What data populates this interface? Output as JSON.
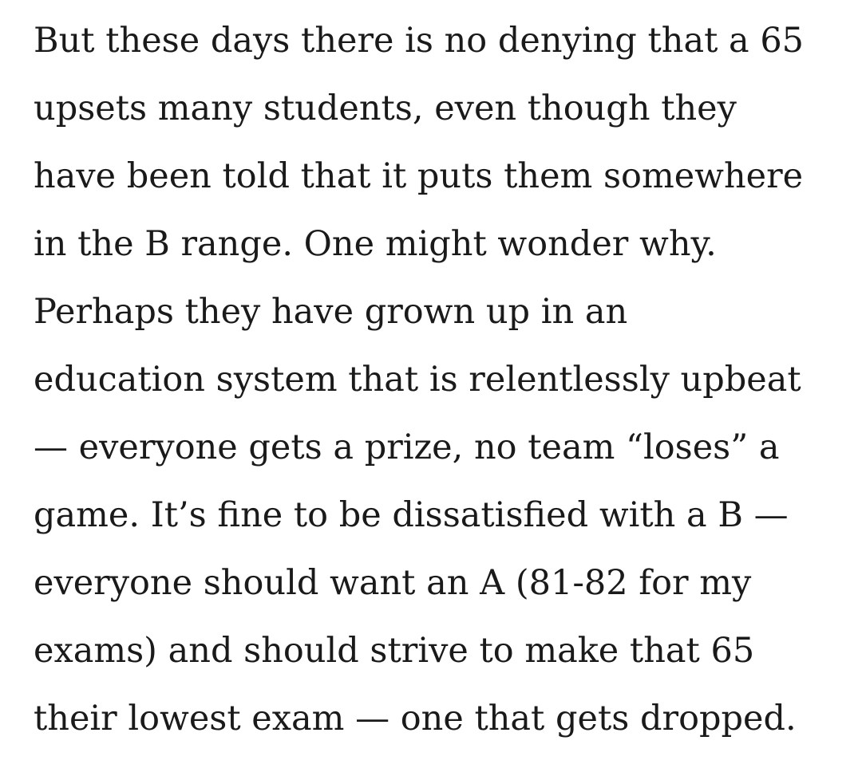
{
  "article": {
    "paragraph_lines": [
      "But these days there is no denying that a 65",
      "upsets many students, even though they",
      "have been told that it puts them somewhere",
      "in the B range. One might wonder why.",
      "Perhaps they have grown up in an",
      "education system that is relentlessly upbeat",
      "— everyone gets a prize, no team “loses” a",
      "game. It’s fine to be dissatisfied with a B —",
      "everyone should want an A (81-82 for my",
      "exams) and should strive to make that 65",
      "their lowest exam — one that gets dropped."
    ]
  }
}
